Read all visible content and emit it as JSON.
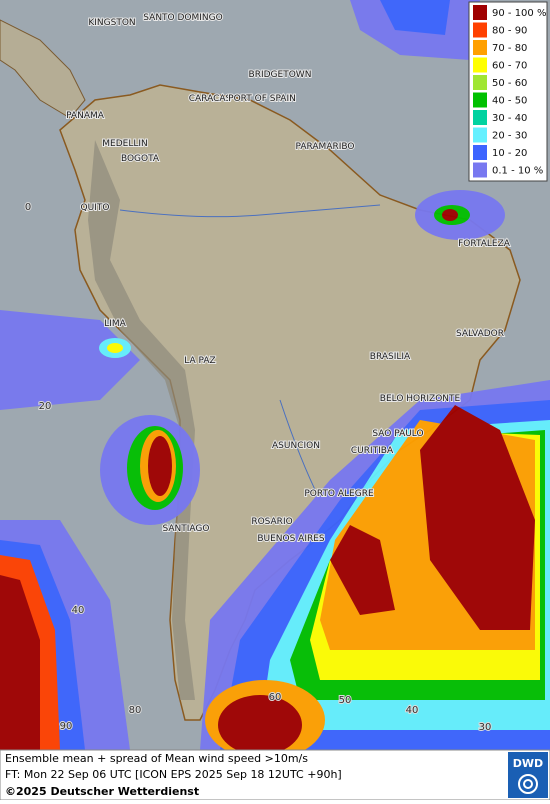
{
  "legend": {
    "items": [
      {
        "label": "90 - 100 %",
        "color": "#a00000"
      },
      {
        "label": "80 - 90",
        "color": "#ff4000"
      },
      {
        "label": "70 - 80",
        "color": "#ffa000"
      },
      {
        "label": "60 - 70",
        "color": "#ffff00"
      },
      {
        "label": "50 - 60",
        "color": "#a0e632"
      },
      {
        "label": "40 - 50",
        "color": "#00c000"
      },
      {
        "label": "30 - 40",
        "color": "#00d2a0"
      },
      {
        "label": "20 - 30",
        "color": "#64f0ff"
      },
      {
        "label": "10 - 20",
        "color": "#3c64ff"
      },
      {
        "label": "0.1 - 10 %",
        "color": "#7878f0"
      }
    ]
  },
  "cities": [
    "KINGSTON",
    "SANTO DOMINGO",
    "BRIDGETOWN",
    "CARACAS",
    "PORT OF SPAIN",
    "PANAMA",
    "MEDELLIN",
    "PARAMARIBO",
    "BOGOTA",
    "QUITO",
    "FORTALEZA",
    "LIMA",
    "SALVADOR",
    "BRASILIA",
    "LA PAZ",
    "BELO HORIZONTE",
    "SAO PAULO",
    "ASUNCION",
    "CURITIBA",
    "PORTO ALEGRE",
    "ROSARIO",
    "SANTIAGO",
    "BUENOS AIRES"
  ],
  "grid_labels": [
    "0",
    "20",
    "40",
    "90",
    "80",
    "60",
    "50",
    "40",
    "30"
  ],
  "footer": {
    "line1": "Ensemble mean + spread of Mean wind speed >10m/s",
    "line2": "FT: Mon 22 Sep 06 UTC [ICON EPS 2025 Sep 18 12UTC +90h]",
    "copyright": "©2025 Deutscher Wetterdienst",
    "logo": "DWD"
  }
}
